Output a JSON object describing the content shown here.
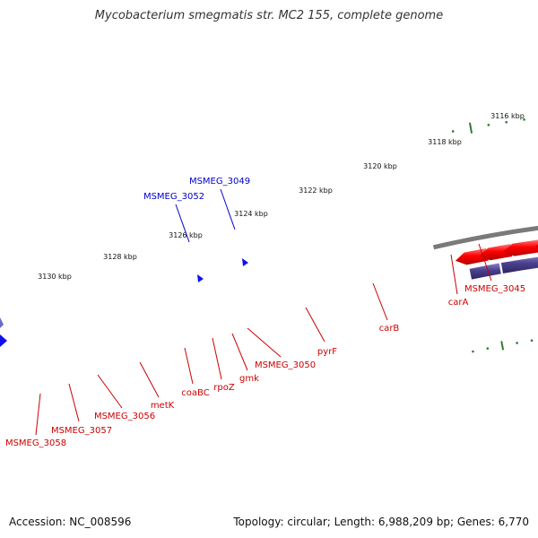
{
  "title": "Mycobacterium smegmatis str. MC2 155, complete genome",
  "accession": "Accession: NC_008596",
  "summary": "Topology: circular; Length: 6,988,209 bp; Genes: 6,770",
  "colors": {
    "backbone": "#7a7a7a",
    "tick": "#2e7d32",
    "forward_gene": "#ff0000",
    "reverse_gene": "#ff0000",
    "forward_cds": "#1010ee",
    "reverse_cds": "#22aaee",
    "label_red": "#cc0000",
    "label_blue": "#0000cc",
    "navy_cds": "#4a3f8c",
    "orange_cds": "#ff8c1a"
  },
  "scale_labels": [
    "3116 kbp",
    "3118 kbp",
    "3120 kbp",
    "3122 kbp",
    "3124 kbp",
    "3126 kbp",
    "3128 kbp",
    "3130 kbp"
  ],
  "gene_labels": [
    "MSMEG_3045",
    "carA",
    "carB",
    "pyrF",
    "MSMEG_3050",
    "gmk",
    "rpoZ",
    "coaBC",
    "metK",
    "MSMEG_3056",
    "MSMEG_3057",
    "MSMEG_3058",
    "MSMEG_3049",
    "MSMEG_3052"
  ]
}
